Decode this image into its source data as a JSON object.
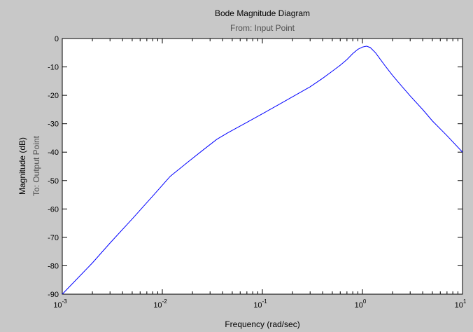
{
  "chart_data": {
    "type": "line",
    "title": "Bode Magnitude Diagram",
    "subtitle": "From: Input Point",
    "xlabel": "Frequency (rad/sec)",
    "ylabel": "Magnitude (dB)",
    "ylabel_secondary": "To: Output Point",
    "xscale": "log",
    "xlim": [
      0.001,
      10
    ],
    "ylim": [
      -90,
      0
    ],
    "grid": false,
    "x_ticks": [
      {
        "value": 0.001,
        "base": "10",
        "exp": "-3"
      },
      {
        "value": 0.01,
        "base": "10",
        "exp": "-2"
      },
      {
        "value": 0.1,
        "base": "10",
        "exp": "-1"
      },
      {
        "value": 1,
        "base": "10",
        "exp": "0"
      },
      {
        "value": 10,
        "base": "10",
        "exp": "1"
      }
    ],
    "y_ticks": [
      0,
      -10,
      -20,
      -30,
      -40,
      -50,
      -60,
      -70,
      -80,
      -90
    ],
    "series": [
      {
        "color": "#0000ff",
        "x": [
          0.001,
          0.002,
          0.003,
          0.005,
          0.008,
          0.012,
          0.018,
          0.025,
          0.035,
          0.045,
          0.07,
          0.1,
          0.15,
          0.2,
          0.3,
          0.4,
          0.5,
          0.6,
          0.7,
          0.8,
          0.9,
          1.0,
          1.1,
          1.2,
          1.35,
          1.5,
          1.7,
          2.0,
          2.5,
          3.0,
          4.0,
          5.0,
          7.0,
          10.0
        ],
        "y": [
          -90,
          -79,
          -72,
          -63.5,
          -55.5,
          -48.5,
          -43.5,
          -39.5,
          -35.5,
          -33.2,
          -29.5,
          -26.5,
          -23,
          -20.5,
          -17,
          -14,
          -11.5,
          -9.4,
          -7.4,
          -5.3,
          -3.8,
          -3.0,
          -2.7,
          -3.2,
          -5.0,
          -7.2,
          -9.8,
          -13,
          -17,
          -20.2,
          -25,
          -29,
          -34.2,
          -40
        ]
      }
    ]
  }
}
